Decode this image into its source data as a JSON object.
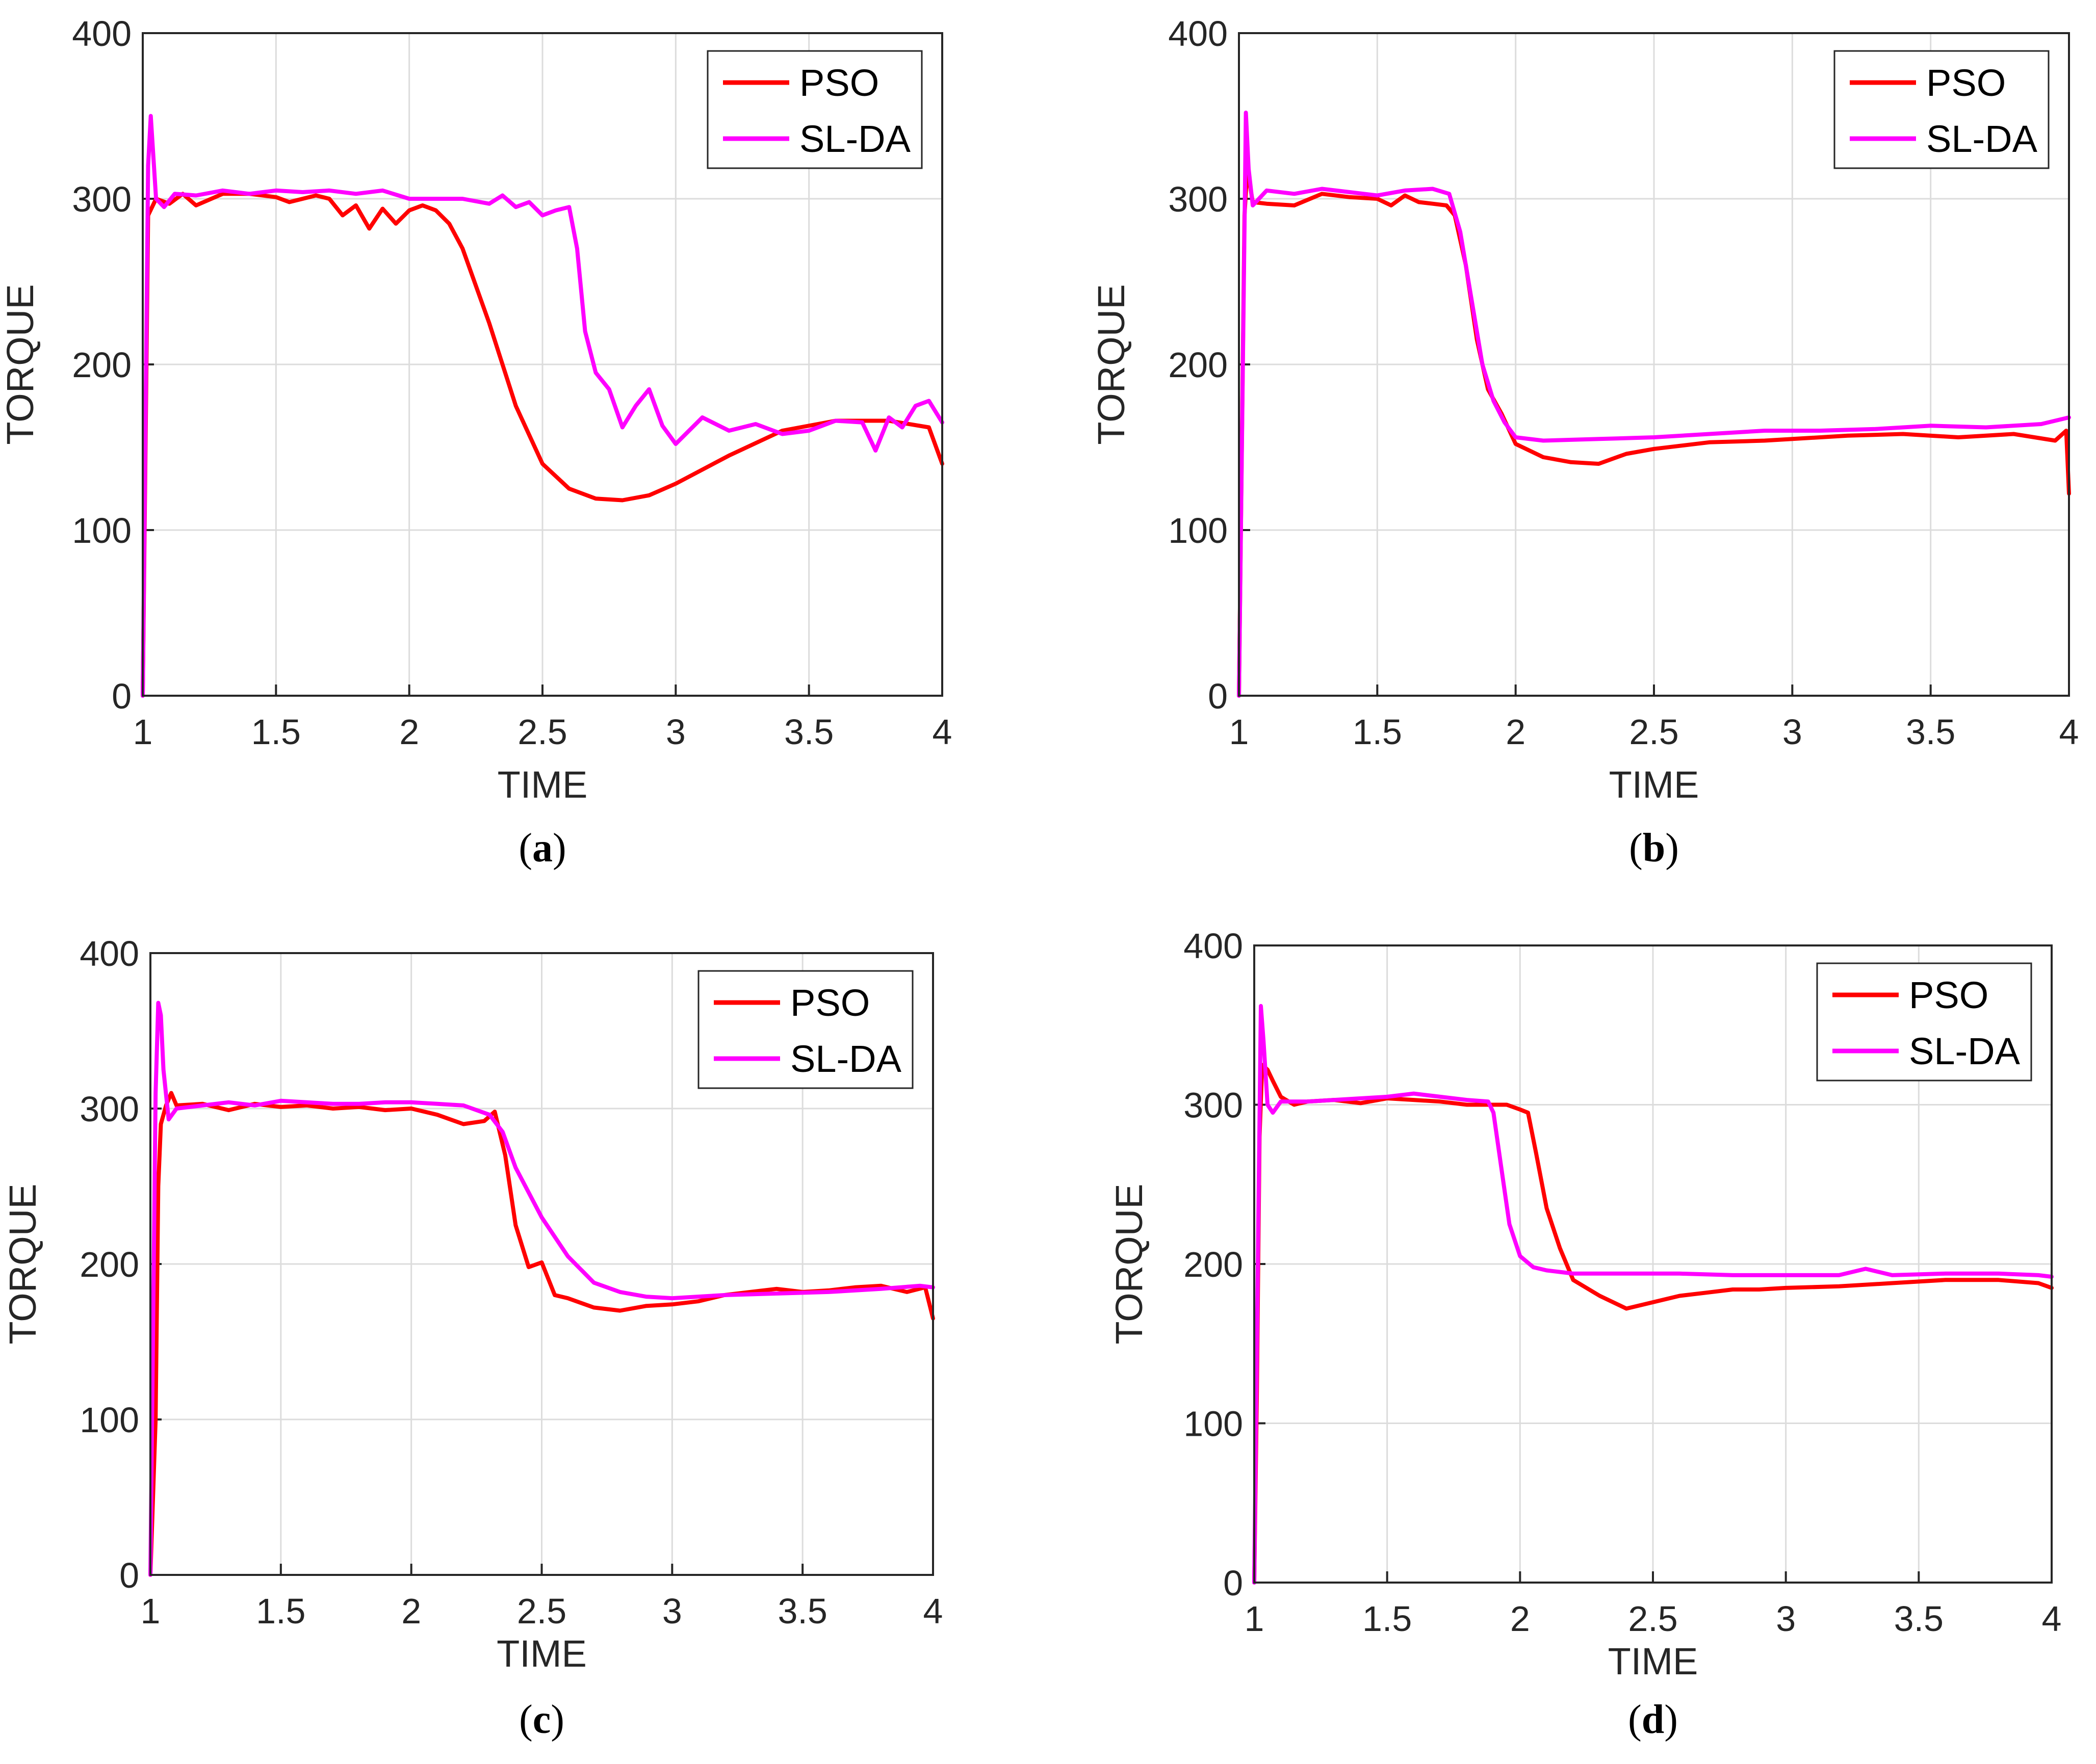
{
  "figure": {
    "series_colors": {
      "PSO": "#ff0000",
      "SL-DA": "#ff00ff"
    }
  },
  "chart_data": [
    {
      "id": "a",
      "caption_letter": "a",
      "type": "line",
      "xlabel": "TIME",
      "ylabel": "TORQUE",
      "xlim": [
        1,
        4
      ],
      "ylim": [
        0,
        400
      ],
      "xticks": [
        "1",
        "1.5",
        "2",
        "2.5",
        "3",
        "3.5",
        "4"
      ],
      "yticks": [
        "0",
        "100",
        "200",
        "300",
        "400"
      ],
      "grid": true,
      "legend": {
        "position": "top-right",
        "entries": [
          "PSO",
          "SL-DA"
        ]
      },
      "series": [
        {
          "name": "PSO",
          "color": "#ff0000",
          "x": [
            1.0,
            1.02,
            1.05,
            1.1,
            1.15,
            1.2,
            1.3,
            1.4,
            1.5,
            1.55,
            1.6,
            1.65,
            1.7,
            1.75,
            1.8,
            1.85,
            1.9,
            1.95,
            2.0,
            2.05,
            2.1,
            2.15,
            2.2,
            2.3,
            2.4,
            2.5,
            2.6,
            2.7,
            2.8,
            2.9,
            3.0,
            3.2,
            3.4,
            3.6,
            3.8,
            3.95,
            4.0
          ],
          "y": [
            0,
            290,
            300,
            297,
            303,
            296,
            303,
            303,
            301,
            298,
            300,
            302,
            300,
            290,
            296,
            282,
            294,
            285,
            293,
            296,
            293,
            285,
            270,
            225,
            175,
            140,
            125,
            119,
            118,
            121,
            128,
            145,
            160,
            166,
            166,
            162,
            140
          ]
        },
        {
          "name": "SL-DA",
          "color": "#ff00ff",
          "x": [
            1.0,
            1.02,
            1.03,
            1.05,
            1.08,
            1.12,
            1.2,
            1.3,
            1.4,
            1.5,
            1.6,
            1.7,
            1.8,
            1.9,
            2.0,
            2.1,
            2.2,
            2.3,
            2.35,
            2.4,
            2.45,
            2.5,
            2.55,
            2.6,
            2.63,
            2.66,
            2.7,
            2.75,
            2.8,
            2.85,
            2.9,
            2.95,
            3.0,
            3.1,
            3.2,
            3.3,
            3.4,
            3.5,
            3.6,
            3.7,
            3.75,
            3.8,
            3.85,
            3.9,
            3.95,
            4.0
          ],
          "y": [
            0,
            320,
            350,
            300,
            295,
            303,
            302,
            305,
            303,
            305,
            304,
            305,
            303,
            305,
            300,
            300,
            300,
            297,
            302,
            295,
            298,
            290,
            293,
            295,
            270,
            220,
            195,
            185,
            162,
            175,
            185,
            163,
            152,
            168,
            160,
            164,
            158,
            160,
            166,
            165,
            148,
            168,
            162,
            175,
            178,
            165
          ]
        }
      ]
    },
    {
      "id": "b",
      "caption_letter": "b",
      "type": "line",
      "xlabel": "TIME",
      "ylabel": "TORQUE",
      "xlim": [
        1,
        4
      ],
      "ylim": [
        0,
        400
      ],
      "xticks": [
        "1",
        "1.5",
        "2",
        "2.5",
        "3",
        "3.5",
        "4"
      ],
      "yticks": [
        "0",
        "100",
        "200",
        "300",
        "400"
      ],
      "grid": true,
      "legend": {
        "position": "top-right",
        "entries": [
          "PSO",
          "SL-DA"
        ]
      },
      "series": [
        {
          "name": "PSO",
          "color": "#ff0000",
          "x": [
            1.0,
            1.02,
            1.03,
            1.05,
            1.1,
            1.2,
            1.3,
            1.4,
            1.5,
            1.55,
            1.6,
            1.65,
            1.7,
            1.75,
            1.78,
            1.82,
            1.86,
            1.9,
            1.95,
            2.0,
            2.05,
            2.1,
            2.2,
            2.3,
            2.4,
            2.5,
            2.7,
            2.9,
            3.0,
            3.2,
            3.4,
            3.6,
            3.8,
            3.95,
            3.99,
            4.0
          ],
          "y": [
            0,
            290,
            318,
            298,
            297,
            296,
            303,
            301,
            300,
            296,
            302,
            298,
            297,
            296,
            290,
            260,
            215,
            185,
            170,
            152,
            148,
            144,
            141,
            140,
            146,
            149,
            153,
            154,
            155,
            157,
            158,
            156,
            158,
            154,
            160,
            122
          ]
        },
        {
          "name": "SL-DA",
          "color": "#ff00ff",
          "x": [
            1.0,
            1.015,
            1.025,
            1.035,
            1.05,
            1.1,
            1.2,
            1.3,
            1.4,
            1.5,
            1.6,
            1.7,
            1.76,
            1.8,
            1.84,
            1.88,
            1.92,
            1.96,
            2.0,
            2.1,
            2.3,
            2.5,
            2.7,
            2.9,
            3.1,
            3.3,
            3.5,
            3.7,
            3.9,
            4.0
          ],
          "y": [
            0,
            210,
            352,
            318,
            296,
            305,
            303,
            306,
            304,
            302,
            305,
            306,
            303,
            280,
            240,
            200,
            178,
            165,
            156,
            154,
            155,
            156,
            158,
            160,
            160,
            161,
            163,
            162,
            164,
            168
          ]
        }
      ]
    },
    {
      "id": "c",
      "caption_letter": "c",
      "type": "line",
      "xlabel": "TIME",
      "ylabel": "TORQUE",
      "xlim": [
        1,
        4
      ],
      "ylim": [
        0,
        400
      ],
      "xticks": [
        "1",
        "1.5",
        "2",
        "2.5",
        "3",
        "3.5",
        "4"
      ],
      "yticks": [
        "0",
        "100",
        "200",
        "300",
        "400"
      ],
      "grid": true,
      "legend": {
        "position": "top-right",
        "entries": [
          "PSO",
          "SL-DA"
        ]
      },
      "series": [
        {
          "name": "PSO",
          "color": "#ff0000",
          "x": [
            1.0,
            1.02,
            1.03,
            1.04,
            1.06,
            1.08,
            1.1,
            1.2,
            1.3,
            1.4,
            1.5,
            1.6,
            1.7,
            1.8,
            1.9,
            2.0,
            2.1,
            2.2,
            2.28,
            2.32,
            2.36,
            2.4,
            2.45,
            2.5,
            2.55,
            2.6,
            2.7,
            2.8,
            2.9,
            3.0,
            3.1,
            3.2,
            3.3,
            3.4,
            3.5,
            3.6,
            3.7,
            3.8,
            3.9,
            3.97,
            4.0
          ],
          "y": [
            0,
            100,
            250,
            290,
            302,
            310,
            302,
            303,
            299,
            303,
            301,
            302,
            300,
            301,
            299,
            300,
            296,
            290,
            292,
            298,
            270,
            225,
            198,
            201,
            180,
            178,
            172,
            170,
            173,
            174,
            176,
            180,
            182,
            184,
            182,
            183,
            185,
            186,
            182,
            185,
            165
          ]
        },
        {
          "name": "SL-DA",
          "color": "#ff00ff",
          "x": [
            1.0,
            1.02,
            1.03,
            1.04,
            1.05,
            1.07,
            1.1,
            1.2,
            1.3,
            1.4,
            1.5,
            1.6,
            1.7,
            1.8,
            1.9,
            2.0,
            2.1,
            2.2,
            2.3,
            2.35,
            2.4,
            2.5,
            2.6,
            2.7,
            2.8,
            2.9,
            3.0,
            3.2,
            3.4,
            3.6,
            3.8,
            3.95,
            4.0
          ],
          "y": [
            0,
            310,
            368,
            360,
            325,
            293,
            300,
            302,
            304,
            302,
            305,
            304,
            303,
            303,
            304,
            304,
            303,
            302,
            296,
            285,
            262,
            230,
            205,
            188,
            182,
            179,
            178,
            180,
            181,
            182,
            184,
            186,
            185
          ]
        }
      ]
    },
    {
      "id": "d",
      "caption_letter": "d",
      "type": "line",
      "xlabel": "TIME",
      "ylabel": "TORQUE",
      "xlim": [
        1,
        4
      ],
      "ylim": [
        0,
        400
      ],
      "xticks": [
        "1",
        "1.5",
        "2",
        "2.5",
        "3",
        "3.5",
        "4"
      ],
      "yticks": [
        "0",
        "100",
        "200",
        "300",
        "400"
      ],
      "grid": true,
      "legend": {
        "position": "top-right",
        "entries": [
          "PSO",
          "SL-DA"
        ]
      },
      "series": [
        {
          "name": "PSO",
          "color": "#ff0000",
          "x": [
            1.0,
            1.01,
            1.02,
            1.03,
            1.05,
            1.07,
            1.1,
            1.15,
            1.2,
            1.3,
            1.4,
            1.5,
            1.6,
            1.7,
            1.8,
            1.9,
            1.95,
            2.0,
            2.03,
            2.06,
            2.1,
            2.15,
            2.2,
            2.3,
            2.4,
            2.5,
            2.6,
            2.7,
            2.8,
            2.9,
            3.0,
            3.2,
            3.4,
            3.6,
            3.8,
            3.95,
            4.0
          ],
          "y": [
            0,
            120,
            280,
            325,
            322,
            315,
            305,
            300,
            302,
            303,
            301,
            304,
            303,
            302,
            300,
            300,
            300,
            297,
            295,
            270,
            235,
            210,
            190,
            180,
            172,
            176,
            180,
            182,
            184,
            184,
            185,
            186,
            188,
            190,
            190,
            188,
            185
          ]
        },
        {
          "name": "SL-DA",
          "color": "#ff00ff",
          "x": [
            1.0,
            1.015,
            1.025,
            1.035,
            1.05,
            1.07,
            1.1,
            1.2,
            1.3,
            1.4,
            1.5,
            1.6,
            1.7,
            1.8,
            1.88,
            1.9,
            1.93,
            1.96,
            2.0,
            2.05,
            2.1,
            2.15,
            2.2,
            2.4,
            2.6,
            2.8,
            3.0,
            3.2,
            3.3,
            3.4,
            3.6,
            3.8,
            3.95,
            4.0
          ],
          "y": [
            0,
            220,
            362,
            340,
            300,
            295,
            302,
            302,
            303,
            304,
            305,
            307,
            305,
            303,
            302,
            295,
            260,
            225,
            205,
            198,
            196,
            195,
            194,
            194,
            194,
            193,
            193,
            193,
            197,
            193,
            194,
            194,
            193,
            192
          ]
        }
      ]
    }
  ]
}
